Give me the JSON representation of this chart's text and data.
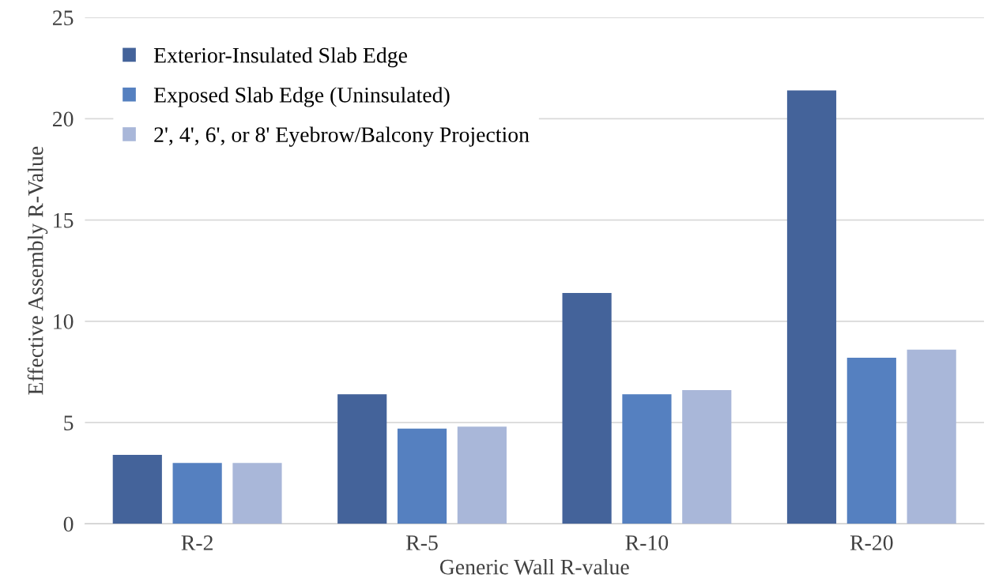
{
  "chart_data": {
    "type": "bar",
    "xlabel": "Generic Wall R-value",
    "ylabel": "Effective Assembly R-Value",
    "categories": [
      "R-2",
      "R-5",
      "R-10",
      "R-20"
    ],
    "series": [
      {
        "name": "Exterior-Insulated Slab Edge",
        "color": "#44639a",
        "values": [
          3.4,
          6.4,
          11.4,
          21.4
        ]
      },
      {
        "name": "Exposed Slab Edge (Uninsulated)",
        "color": "#5580c0",
        "values": [
          3.0,
          4.7,
          6.4,
          8.2
        ]
      },
      {
        "name": "2', 4', 6', or 8' Eyebrow/Balcony Projection",
        "color": "#a9b7d9",
        "values": [
          3.0,
          4.8,
          6.6,
          8.6
        ]
      }
    ],
    "ylim": [
      0,
      25
    ],
    "yticks": [
      0,
      5,
      10,
      15,
      20,
      25
    ],
    "grid": "y",
    "legend": "top left"
  }
}
